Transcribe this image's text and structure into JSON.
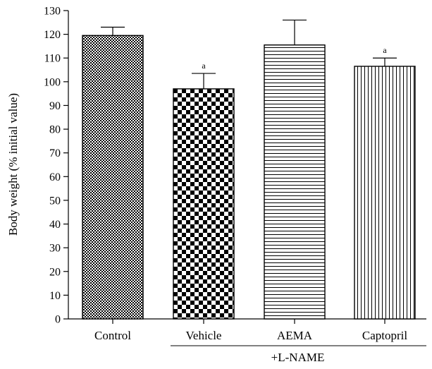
{
  "chart_data": {
    "type": "bar",
    "ylabel": "Body weight (% initial value)",
    "xlabel": "",
    "ylim": [
      0,
      130
    ],
    "yticks": [
      0,
      10,
      20,
      30,
      40,
      50,
      60,
      70,
      80,
      90,
      100,
      110,
      120,
      130
    ],
    "categories": [
      "Control",
      "Vehicle",
      "AEMA",
      "Captopril"
    ],
    "values": [
      119.5,
      97,
      115.5,
      106.5
    ],
    "error_upper": [
      123,
      103.5,
      126,
      110
    ],
    "annotations": [
      "",
      "a",
      "",
      "a"
    ],
    "patterns": [
      "fine-checker",
      "checker",
      "horizontal-lines",
      "vertical-lines"
    ],
    "group_label": "+L-NAME",
    "group_categories": [
      "Vehicle",
      "AEMA",
      "Captopril"
    ],
    "grid": false,
    "colors": {
      "ink": "#000000",
      "background": "#ffffff"
    }
  }
}
